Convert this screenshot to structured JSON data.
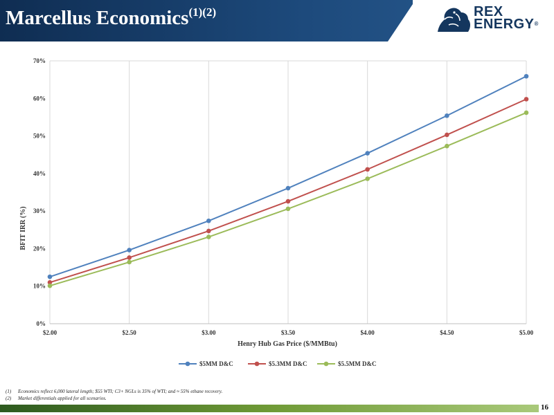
{
  "header": {
    "title": "Marcellus Economics",
    "title_superscript": "(1)(2)",
    "logo_line1": "REX",
    "logo_line2": "ENERGY",
    "logo_reg": "®"
  },
  "colors": {
    "header_bg": "#14365e",
    "series_1": "#4f81bd",
    "series_2": "#c0504d",
    "series_3": "#9bbb59"
  },
  "chart_data": {
    "type": "line",
    "title": "",
    "xlabel": "Henry Hub Gas Price ($/MMBtu)",
    "ylabel": "BFIT IRR (%)",
    "categories": [
      "$2.00",
      "$2.50",
      "$3.00",
      "$3.50",
      "$4.00",
      "$4.50",
      "$5.00"
    ],
    "y_ticks": [
      "0%",
      "10%",
      "20%",
      "30%",
      "40%",
      "50%",
      "60%",
      "70%"
    ],
    "ylim": [
      0,
      70
    ],
    "grid": "vertical",
    "legend_position": "bottom",
    "series": [
      {
        "name": "$5MM D&C",
        "color": "#4f81bd",
        "values": [
          12.5,
          19.6,
          27.4,
          36.1,
          45.4,
          55.4,
          65.9
        ]
      },
      {
        "name": "$5.3MM D&C",
        "color": "#c0504d",
        "values": [
          11.0,
          17.6,
          24.7,
          32.6,
          41.1,
          50.3,
          59.8
        ]
      },
      {
        "name": "$5.5MM D&C",
        "color": "#9bbb59",
        "values": [
          10.1,
          16.4,
          23.1,
          30.6,
          38.6,
          47.3,
          56.2
        ]
      }
    ]
  },
  "footnotes": [
    {
      "num": "(1)",
      "text": "Economics reflect 6,000 lateral length; $55 WTI; C3+ NGLs is 35% of WTI; and ≈ 55% ethane recovery."
    },
    {
      "num": "(2)",
      "text": "Market differentials applied for all scenarios."
    }
  ],
  "footer": {
    "page_number": "16"
  }
}
